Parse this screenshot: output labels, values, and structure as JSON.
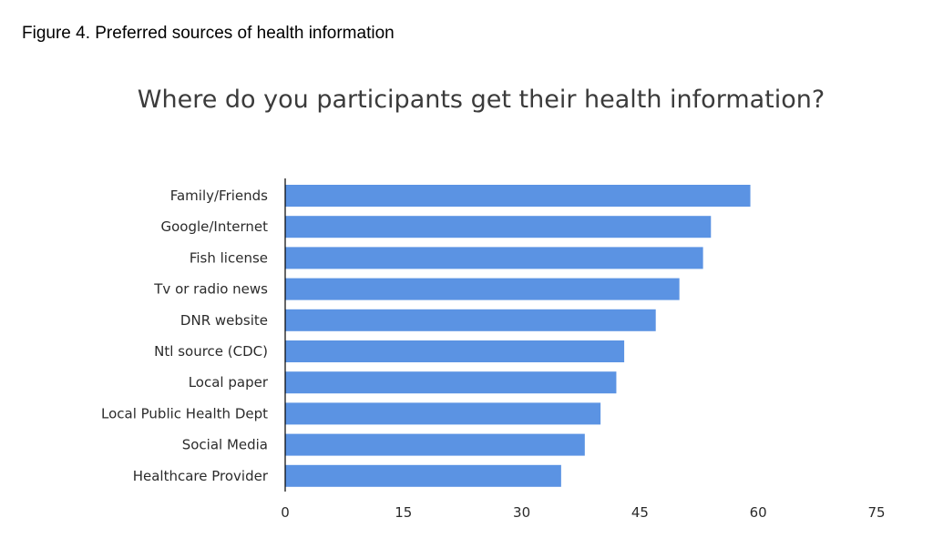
{
  "figure_caption": "Figure 4. Preferred sources of health information",
  "chart_data": {
    "type": "bar",
    "orientation": "horizontal",
    "title": "Where do you participants get their health information?",
    "xlabel": "",
    "ylabel": "",
    "categories": [
      "Family/Friends",
      "Google/Internet",
      "Fish license",
      "Tv or radio news",
      "DNR website",
      "Ntl source (CDC)",
      "Local paper",
      "Local Public Health Dept",
      "Social Media",
      "Healthcare Provider"
    ],
    "values": [
      59,
      54,
      53,
      50,
      47,
      43,
      42,
      40,
      38,
      35
    ],
    "xlim": [
      0,
      75
    ],
    "xticks": [
      0,
      15,
      30,
      45,
      60,
      75
    ],
    "grid": false,
    "bar_color": "#5b93e3",
    "axis_color": "#000000"
  }
}
